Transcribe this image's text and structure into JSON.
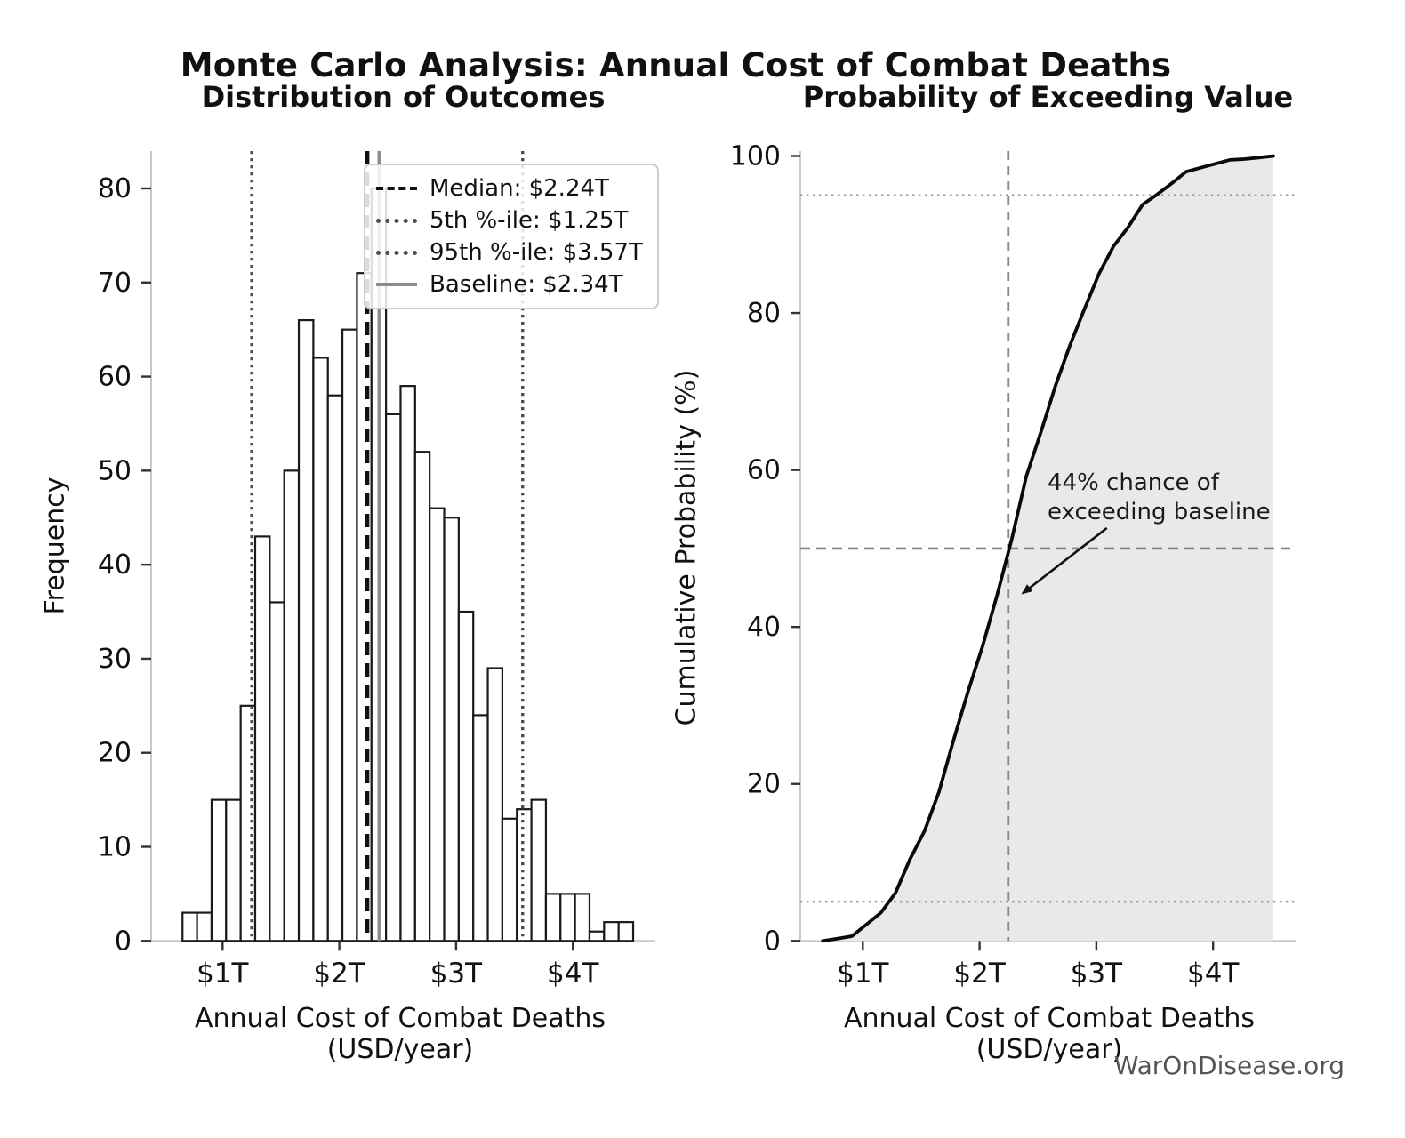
{
  "header": {
    "title": "Monte Carlo Analysis: Annual Cost of Combat Deaths"
  },
  "footer": {
    "watermark": "WarOnDisease.org"
  },
  "colors": {
    "text": "#111111",
    "spine": "#c9c9c9",
    "tick": "#333333",
    "bar_fill": "#ffffff",
    "bar_edge": "#1a1a1a",
    "curve": "#0a0a0a",
    "area_fill": "#e9e9e9",
    "guide_gray": "#888888",
    "dotted_gray": "#999999",
    "watermark_gray": "#555555"
  },
  "chart_data": [
    {
      "type": "bar",
      "title": "Distribution of Outcomes",
      "xlabel": "Annual Cost of Combat Deaths (USD/year)",
      "ylabel": "Frequency",
      "bin_start_trillions": 0.657,
      "bin_width_trillions": 0.1245,
      "counts": [
        3,
        3,
        15,
        15,
        25,
        43,
        36,
        50,
        66,
        62,
        58,
        65,
        71,
        80,
        56,
        59,
        52,
        46,
        45,
        35,
        24,
        29,
        13,
        14,
        15,
        5,
        5,
        5,
        1,
        2,
        2
      ],
      "total_simulations": 1000,
      "xticks": [
        {
          "value": 1,
          "label": "$1T"
        },
        {
          "value": 2,
          "label": "$2T"
        },
        {
          "value": 3,
          "label": "$3T"
        },
        {
          "value": 4,
          "label": "$4T"
        }
      ],
      "yticks": [
        0,
        10,
        20,
        30,
        40,
        50,
        60,
        70,
        80
      ],
      "ylim": [
        0,
        84
      ],
      "xlim": [
        0.39,
        4.71
      ],
      "grid": false,
      "legend_position": "upper right",
      "lines": [
        {
          "name": "median",
          "label": "Median: $2.24T",
          "x": 2.24,
          "style": "dashed",
          "color": "#111111"
        },
        {
          "name": "p5",
          "label": "5th %-ile: $1.25T",
          "x": 1.25,
          "style": "dotted",
          "color": "#4d4d4d"
        },
        {
          "name": "p95",
          "label": "95th %-ile: $3.57T",
          "x": 3.57,
          "style": "dotted",
          "color": "#4d4d4d"
        },
        {
          "name": "baseline",
          "label": "Baseline: $2.34T",
          "x": 2.34,
          "style": "solid",
          "color": "#8c8c8c"
        }
      ]
    },
    {
      "type": "line",
      "title": "Probability of Exceeding Value",
      "xlabel": "Annual Cost of Combat Deaths (USD/year)",
      "ylabel": "Cumulative Probability (%)",
      "xticks": [
        {
          "value": 1,
          "label": "$1T"
        },
        {
          "value": 2,
          "label": "$2T"
        },
        {
          "value": 3,
          "label": "$3T"
        },
        {
          "value": 4,
          "label": "$4T"
        }
      ],
      "yticks": [
        0,
        20,
        40,
        60,
        80,
        100
      ],
      "ylim": [
        0,
        100.6
      ],
      "xlim": [
        0.47,
        4.71
      ],
      "grid": false,
      "hlines": [
        {
          "y": 5,
          "style": "dotted",
          "color": "#999999"
        },
        {
          "y": 50,
          "style": "dashed",
          "color": "#888888"
        },
        {
          "y": 95,
          "style": "dotted",
          "color": "#999999"
        }
      ],
      "vline": {
        "name": "baseline-marker",
        "x": 2.245,
        "style": "dashed",
        "color": "#888888"
      },
      "annotation": {
        "line1": "44% chance of",
        "line2": "exceeding baseline",
        "arrow_from": [
          3.09,
          52.6
        ],
        "arrow_to": [
          2.37,
          44.3
        ]
      }
    }
  ]
}
